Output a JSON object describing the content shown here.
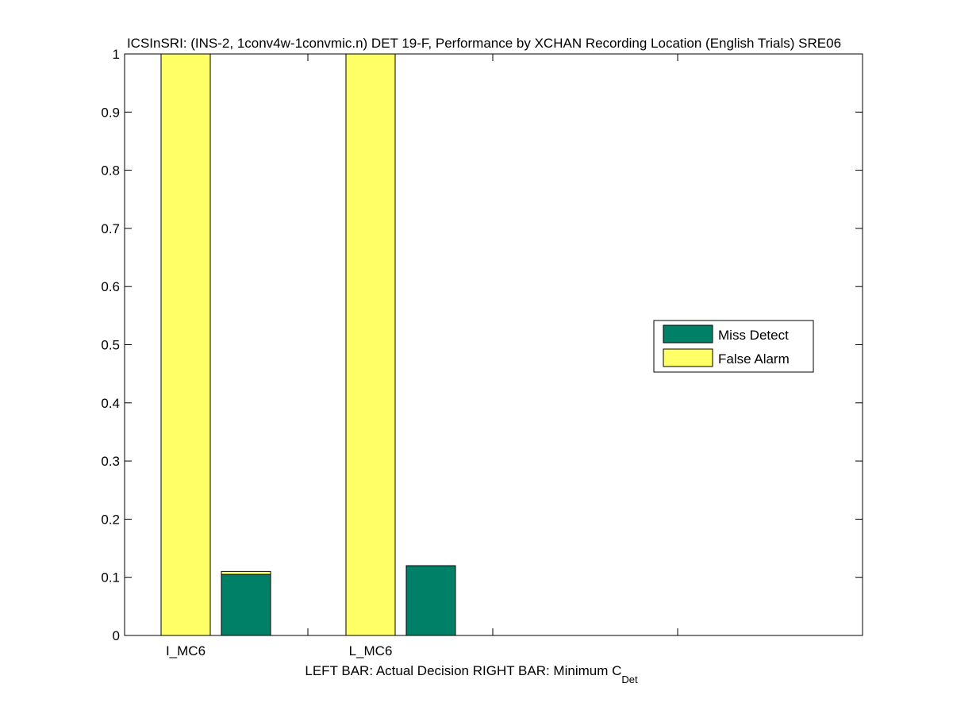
{
  "chart_data": {
    "type": "bar",
    "title": "ICSInSRI: (INS-2, 1conv4w-1convmic.n) DET 19-F,  Performance by XCHAN Recording Location (English Trials) SRE06",
    "xlabel_main": "LEFT BAR: Actual Decision     RIGHT BAR: Minimum C",
    "xlabel_sub": "Det",
    "ylabel": "",
    "ylim": [
      0,
      1
    ],
    "yticks": [
      "0",
      "0.1",
      "0.2",
      "0.3",
      "0.4",
      "0.5",
      "0.6",
      "0.7",
      "0.8",
      "0.9",
      "1"
    ],
    "categories": [
      "I_MC6",
      "L_MC6"
    ],
    "bar_roles": [
      "Actual Decision",
      "Minimum C_Det"
    ],
    "stack_order": [
      "Miss Detect",
      "False Alarm"
    ],
    "groups": [
      {
        "category": "I_MC6",
        "actual": {
          "Miss Detect": 0.0,
          "False Alarm": 1.0
        },
        "minimum": {
          "Miss Detect": 0.105,
          "False Alarm": 0.005
        }
      },
      {
        "category": "L_MC6",
        "actual": {
          "Miss Detect": 0.0,
          "False Alarm": 1.0
        },
        "minimum": {
          "Miss Detect": 0.12,
          "False Alarm": 0.0
        }
      }
    ],
    "legend": {
      "position": "right",
      "entries": [
        {
          "name": "Miss Detect",
          "color": "#008066"
        },
        {
          "name": "False Alarm",
          "color": "#ffff66"
        }
      ]
    },
    "grid": false
  }
}
